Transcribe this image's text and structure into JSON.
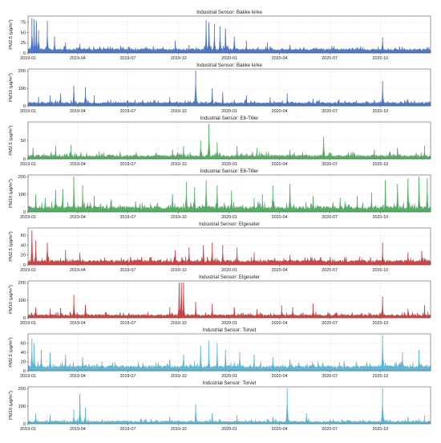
{
  "chart_data": [
    {
      "type": "area",
      "title": "Industrial Sensor: Bakke kirke",
      "ylabel_main": "PM2.5 (μg/m",
      "ylabel_sup": "3",
      "ylabel_end": ")",
      "yticks": [
        0,
        25,
        50,
        75
      ],
      "ylim": [
        0,
        90
      ],
      "color": "#4472c4",
      "base": 6,
      "noise": 5,
      "peaks": [
        [
          "2019-01-08",
          85
        ],
        [
          "2019-01-12",
          82
        ],
        [
          "2019-01-16",
          78
        ],
        [
          "2019-01-20",
          55
        ],
        [
          "2019-02-05",
          78
        ],
        [
          "2019-02-18",
          40
        ],
        [
          "2019-03-10",
          25
        ],
        [
          "2019-04-05",
          22
        ],
        [
          "2019-09-25",
          30
        ],
        [
          "2019-10-20",
          20
        ],
        [
          "2019-11-20",
          80
        ],
        [
          "2019-11-25",
          75
        ],
        [
          "2019-12-05",
          70
        ],
        [
          "2019-12-15",
          65
        ],
        [
          "2019-12-25",
          60
        ],
        [
          "2020-01-10",
          40
        ],
        [
          "2020-02-01",
          30
        ],
        [
          "2020-03-10",
          25
        ],
        [
          "2020-04-20",
          20
        ],
        [
          "2020-10-05",
          38
        ],
        [
          "2020-11-10",
          15
        ]
      ]
    },
    {
      "type": "area",
      "title": "Industrial Sensor: Bakke kirke",
      "ylabel_main": "PM10 (μg/m",
      "ylabel_sup": "3",
      "ylabel_end": ")",
      "yticks": [
        0,
        100,
        200
      ],
      "ylim": [
        0,
        210
      ],
      "color": "#4472c4",
      "base": 12,
      "noise": 10,
      "peaks": [
        [
          "2019-01-20",
          50
        ],
        [
          "2019-02-10",
          60
        ],
        [
          "2019-03-01",
          70
        ],
        [
          "2019-03-25",
          115
        ],
        [
          "2019-04-15",
          105
        ],
        [
          "2019-05-01",
          60
        ],
        [
          "2019-09-15",
          50
        ],
        [
          "2019-11-01",
          200
        ],
        [
          "2019-12-01",
          100
        ],
        [
          "2019-12-20",
          80
        ],
        [
          "2020-02-01",
          60
        ],
        [
          "2020-03-15",
          50
        ],
        [
          "2020-04-15",
          70
        ],
        [
          "2020-06-01",
          40
        ],
        [
          "2020-10-05",
          140
        ],
        [
          "2020-11-20",
          40
        ]
      ]
    },
    {
      "type": "area",
      "title": "Industrial Sensor: E6-Tiller",
      "ylabel_main": "PM2.5 (μg/m",
      "ylabel_sup": "3",
      "ylabel_end": ")",
      "yticks": [
        0,
        50
      ],
      "ylim": [
        0,
        100
      ],
      "color": "#4aab5c",
      "base": 5,
      "noise": 6,
      "peaks": [
        [
          "2019-01-10",
          30
        ],
        [
          "2019-02-20",
          35
        ],
        [
          "2019-03-20",
          38
        ],
        [
          "2019-05-10",
          20
        ],
        [
          "2019-09-20",
          25
        ],
        [
          "2019-10-10",
          35
        ],
        [
          "2019-11-10",
          50
        ],
        [
          "2019-11-25",
          95
        ],
        [
          "2019-12-10",
          45
        ],
        [
          "2020-01-15",
          35
        ],
        [
          "2020-02-20",
          30
        ],
        [
          "2020-04-20",
          25
        ],
        [
          "2020-06-20",
          60
        ],
        [
          "2020-09-20",
          25
        ],
        [
          "2020-11-01",
          30
        ],
        [
          "2020-12-20",
          35
        ]
      ]
    },
    {
      "type": "area",
      "title": "Industrial Sensor: E6-Tiller",
      "ylabel_main": "PM10 (μg/m",
      "ylabel_sup": "3",
      "ylabel_end": ")",
      "yticks": [
        0,
        100,
        200
      ],
      "ylim": [
        0,
        210
      ],
      "color": "#4aab5c",
      "base": 15,
      "noise": 18,
      "peaks": [
        [
          "2019-01-15",
          100
        ],
        [
          "2019-02-01",
          80
        ],
        [
          "2019-02-20",
          125
        ],
        [
          "2019-03-05",
          130
        ],
        [
          "2019-03-25",
          200
        ],
        [
          "2019-04-10",
          150
        ],
        [
          "2019-05-01",
          90
        ],
        [
          "2019-06-01",
          70
        ],
        [
          "2019-07-15",
          60
        ],
        [
          "2019-09-20",
          100
        ],
        [
          "2019-10-15",
          170
        ],
        [
          "2019-10-30",
          140
        ],
        [
          "2019-11-20",
          180
        ],
        [
          "2019-12-10",
          150
        ],
        [
          "2020-01-05",
          120
        ],
        [
          "2020-02-15",
          80
        ],
        [
          "2020-03-01",
          100
        ],
        [
          "2020-03-20",
          150
        ],
        [
          "2020-04-20",
          160
        ],
        [
          "2020-06-01",
          90
        ],
        [
          "2020-07-20",
          80
        ],
        [
          "2020-08-20",
          90
        ],
        [
          "2020-09-15",
          110
        ],
        [
          "2020-10-10",
          180
        ],
        [
          "2020-11-01",
          160
        ],
        [
          "2020-11-20",
          190
        ],
        [
          "2020-12-10",
          200
        ],
        [
          "2020-12-25",
          190
        ]
      ]
    },
    {
      "type": "area",
      "title": "Industrial Sensor: Elgeseter",
      "ylabel_main": "PM2.5 (μg/m",
      "ylabel_sup": "3",
      "ylabel_end": ")",
      "yticks": [
        0,
        20,
        40,
        60
      ],
      "ylim": [
        0,
        75
      ],
      "color": "#cc3b3b",
      "base": 5,
      "noise": 5,
      "peaks": [
        [
          "2019-01-08",
          70
        ],
        [
          "2019-01-15",
          50
        ],
        [
          "2019-02-05",
          45
        ],
        [
          "2019-03-10",
          30
        ],
        [
          "2019-04-05",
          25
        ],
        [
          "2019-05-20",
          15
        ],
        [
          "2019-09-25",
          30
        ],
        [
          "2019-10-20",
          35
        ],
        [
          "2019-11-15",
          40
        ],
        [
          "2019-12-01",
          45
        ],
        [
          "2019-12-20",
          40
        ],
        [
          "2020-01-15",
          35
        ],
        [
          "2020-02-15",
          25
        ],
        [
          "2020-04-20",
          20
        ],
        [
          "2020-06-15",
          15
        ],
        [
          "2020-10-05",
          45
        ],
        [
          "2020-11-20",
          25
        ],
        [
          "2020-12-15",
          28
        ]
      ]
    },
    {
      "type": "area",
      "title": "Industrial Sensor: Elgeseter",
      "ylabel_main": "PM10 (μg/m",
      "ylabel_sup": "3",
      "ylabel_end": ")",
      "yticks": [
        0,
        100,
        200
      ],
      "ylim": [
        0,
        210
      ],
      "color": "#cc3b3b",
      "base": 10,
      "noise": 10,
      "peaks": [
        [
          "2019-01-15",
          60
        ],
        [
          "2019-02-10",
          50
        ],
        [
          "2019-03-01",
          55
        ],
        [
          "2019-03-25",
          130
        ],
        [
          "2019-04-15",
          75
        ],
        [
          "2019-09-15",
          60
        ],
        [
          "2019-10-02",
          200
        ],
        [
          "2019-10-06",
          200
        ],
        [
          "2019-10-10",
          200
        ],
        [
          "2019-11-01",
          90
        ],
        [
          "2019-12-01",
          80
        ],
        [
          "2020-01-10",
          60
        ],
        [
          "2020-02-20",
          50
        ],
        [
          "2020-04-05",
          70
        ],
        [
          "2020-04-25",
          60
        ],
        [
          "2020-06-01",
          80
        ],
        [
          "2020-10-05",
          120
        ],
        [
          "2020-11-20",
          50
        ],
        [
          "2020-12-20",
          70
        ]
      ]
    },
    {
      "type": "area",
      "title": "Industrial Sensor: Torvet",
      "ylabel_main": "PM2.5 (μg/m",
      "ylabel_sup": "3",
      "ylabel_end": ")",
      "yticks": [
        0,
        20,
        40,
        60
      ],
      "ylim": [
        0,
        80
      ],
      "color": "#56b4d3",
      "base": 6,
      "noise": 6,
      "peaks": [
        [
          "2019-01-08",
          70
        ],
        [
          "2019-01-12",
          60
        ],
        [
          "2019-01-25",
          45
        ],
        [
          "2019-02-10",
          40
        ],
        [
          "2019-03-10",
          35
        ],
        [
          "2019-04-10",
          30
        ],
        [
          "2019-05-15",
          20
        ],
        [
          "2019-09-15",
          25
        ],
        [
          "2019-10-10",
          35
        ],
        [
          "2019-11-10",
          55
        ],
        [
          "2019-11-25",
          65
        ],
        [
          "2019-12-10",
          60
        ],
        [
          "2019-12-25",
          45
        ],
        [
          "2020-01-20",
          40
        ],
        [
          "2020-02-15",
          35
        ],
        [
          "2020-03-20",
          30
        ],
        [
          "2020-04-20",
          25
        ],
        [
          "2020-06-10",
          20
        ],
        [
          "2020-10-05",
          78
        ],
        [
          "2020-11-10",
          40
        ],
        [
          "2020-12-10",
          45
        ]
      ]
    },
    {
      "type": "area",
      "title": "Industrial Sensor: Torvet",
      "ylabel_main": "PM10 (μg/m",
      "ylabel_sup": "3",
      "ylabel_end": ")",
      "yticks": [
        0,
        100,
        200
      ],
      "ylim": [
        0,
        210
      ],
      "color": "#56b4d3",
      "base": 8,
      "noise": 9,
      "peaks": [
        [
          "2019-01-15",
          60
        ],
        [
          "2019-02-10",
          50
        ],
        [
          "2019-03-25",
          80
        ],
        [
          "2019-04-05",
          170
        ],
        [
          "2019-04-15",
          90
        ],
        [
          "2019-09-15",
          40
        ],
        [
          "2019-11-01",
          110
        ],
        [
          "2019-12-01",
          60
        ],
        [
          "2020-01-15",
          50
        ],
        [
          "2020-03-20",
          40
        ],
        [
          "2020-04-15",
          200
        ],
        [
          "2020-05-20",
          60
        ],
        [
          "2020-10-05",
          200
        ],
        [
          "2020-11-20",
          40
        ],
        [
          "2020-12-20",
          45
        ]
      ]
    }
  ],
  "x_range": [
    "2019-01-01",
    "2020-12-31"
  ],
  "xticks": [
    {
      "label": "2019-01",
      "date": "2019-01-01"
    },
    {
      "label": "2019-04",
      "date": "2019-04-01"
    },
    {
      "label": "2019-07",
      "date": "2019-07-01"
    },
    {
      "label": "2019-10",
      "date": "2019-10-01"
    },
    {
      "label": "2020-01",
      "date": "2020-01-01"
    },
    {
      "label": "2020-04",
      "date": "2020-04-01"
    },
    {
      "label": "2020-07",
      "date": "2020-07-01"
    },
    {
      "label": "2020-10",
      "date": "2020-10-01"
    }
  ],
  "grid": true
}
